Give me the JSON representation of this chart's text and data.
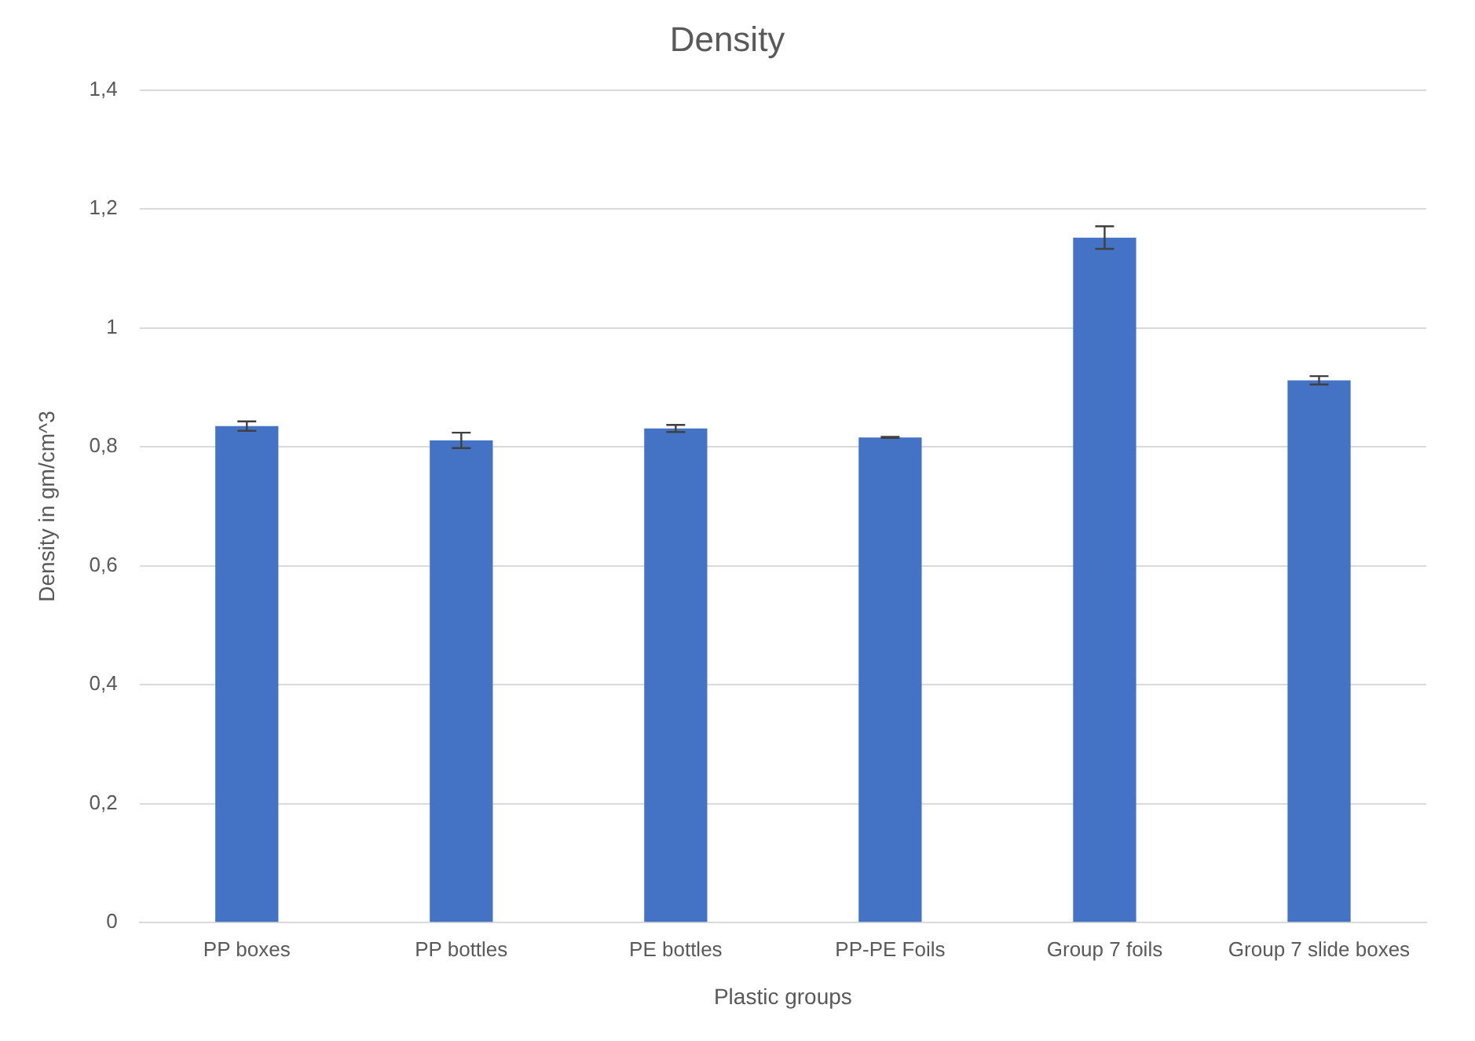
{
  "chart_data": {
    "type": "bar",
    "title": "Density",
    "xlabel": "Plastic groups",
    "ylabel": "Density in gm/cm^3",
    "categories": [
      "PP boxes",
      "PP bottles",
      "PE bottles",
      "PP-PE Foils",
      "Group 7 foils",
      "Group 7 slide boxes"
    ],
    "values": [
      0.835,
      0.811,
      0.831,
      0.816,
      1.152,
      0.912
    ],
    "errors": [
      0.008,
      0.013,
      0.006,
      0.001,
      0.019,
      0.007
    ],
    "color": "#4472c4",
    "ylim": [
      0,
      1.4
    ],
    "yticks": [
      {
        "value": 0,
        "label": "0"
      },
      {
        "value": 0.2,
        "label": "0,2"
      },
      {
        "value": 0.4,
        "label": "0,4"
      },
      {
        "value": 0.6,
        "label": "0,6"
      },
      {
        "value": 0.8,
        "label": "0,8"
      },
      {
        "value": 1,
        "label": "1"
      },
      {
        "value": 1.2,
        "label": "1,2"
      },
      {
        "value": 1.4,
        "label": "1,4"
      }
    ],
    "grid": "y",
    "legend": false
  }
}
